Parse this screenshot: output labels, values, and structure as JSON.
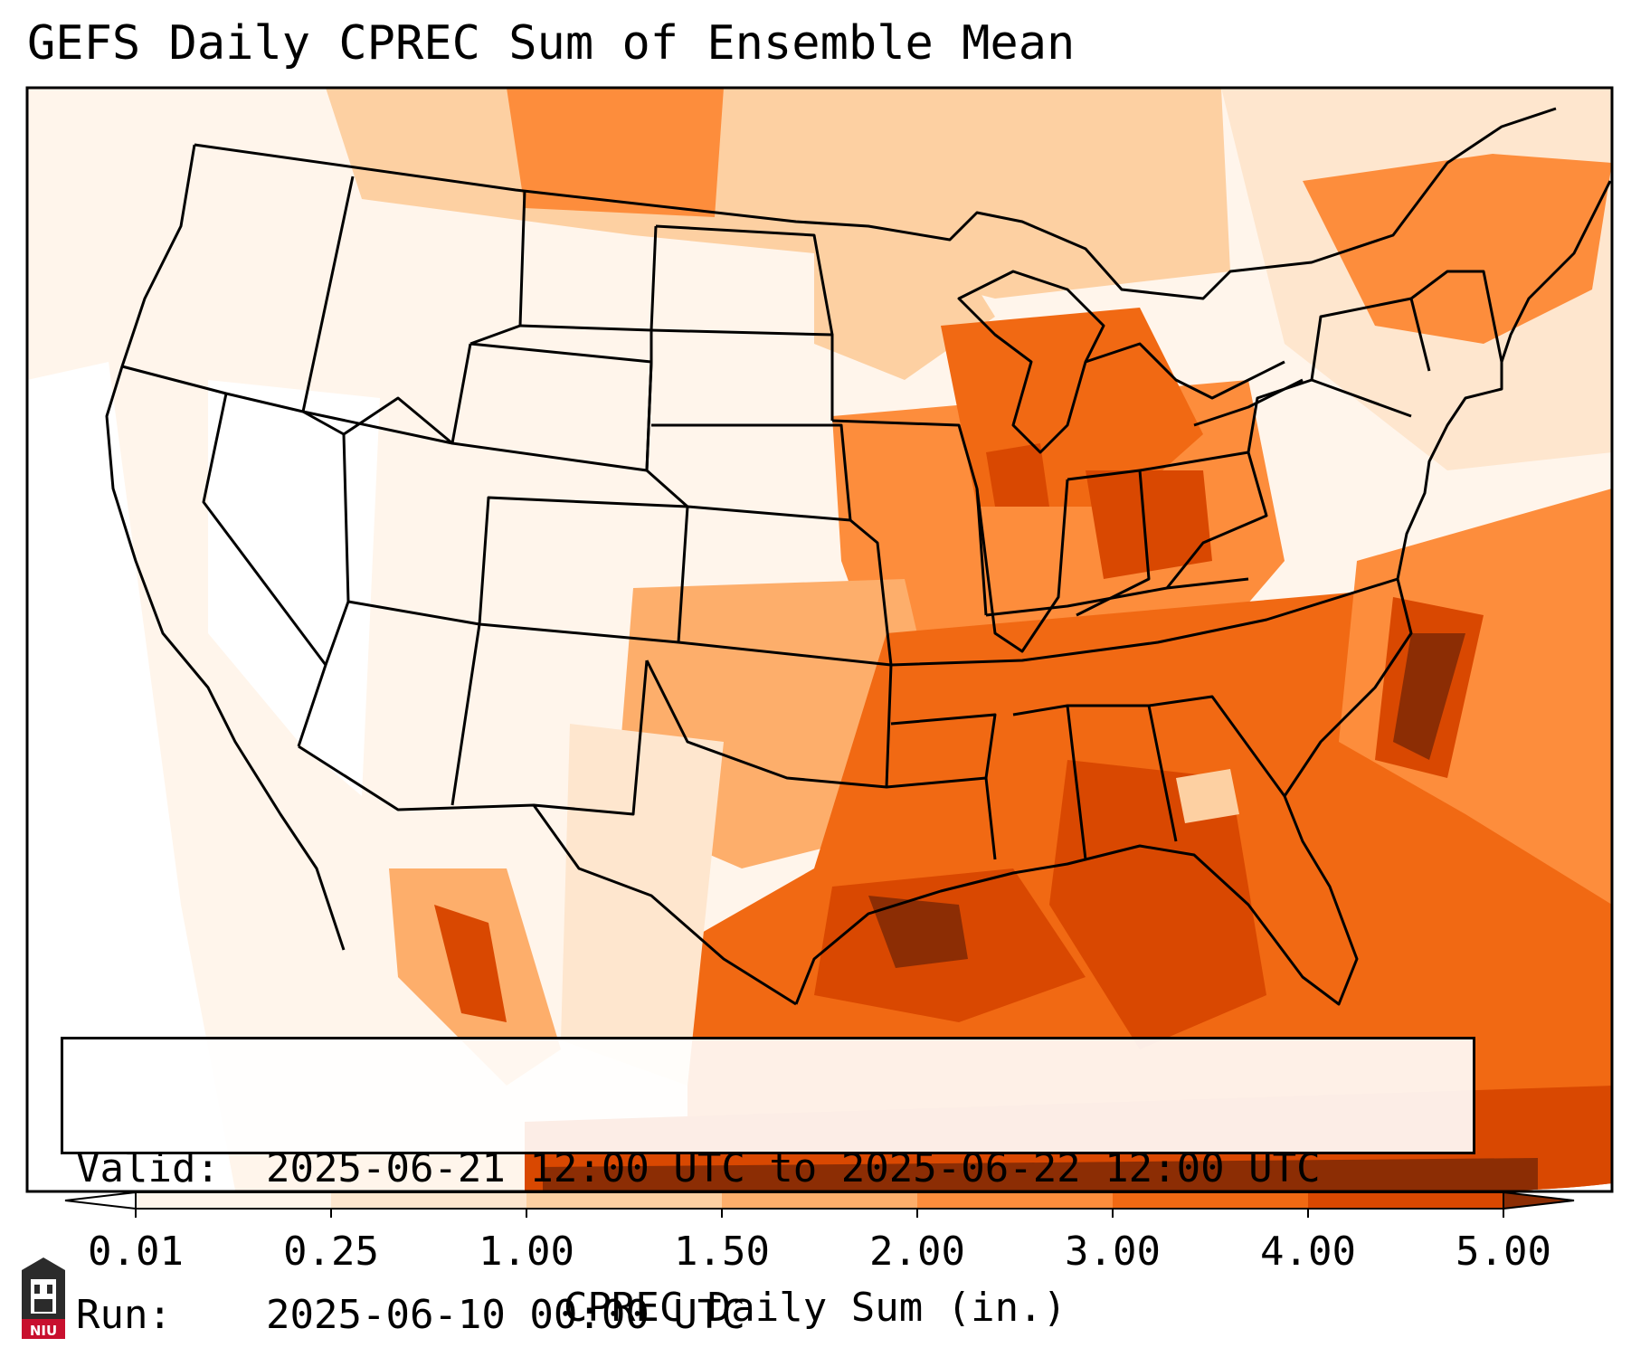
{
  "title": "GEFS Daily CPREC Sum of Ensemble Mean",
  "valid_label": "Valid:",
  "valid_value": "2025-06-21 12:00 UTC to 2025-06-22 12:00 UTC",
  "run_label": "Run:",
  "run_value": "2025-06-10 00:00 UTC",
  "colorbar": {
    "title": "CPREC Daily Sum (in.)",
    "ticks": [
      "0.01",
      "0.25",
      "1.00",
      "1.50",
      "2.00",
      "3.00",
      "4.00",
      "5.00"
    ],
    "colors": [
      "#ffffff",
      "#fff5eb",
      "#fee6ce",
      "#fdd0a2",
      "#fdae6b",
      "#fd8d3c",
      "#f16913",
      "#d94801",
      "#8c2d04"
    ]
  },
  "logo_text": "NIU"
}
